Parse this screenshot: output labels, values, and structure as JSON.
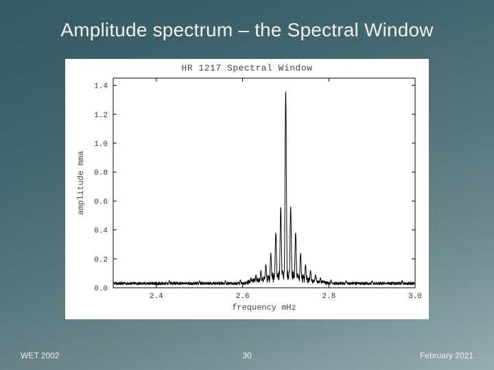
{
  "title": "Amplitude spectrum – the Spectral Window",
  "footer": {
    "left": "WET 2002",
    "page": "30",
    "right": "February 2021"
  },
  "chart": {
    "title": "HR 1217 Spectral Window",
    "type": "line",
    "xlabel": "frequency mHz",
    "ylabel": "amplitude mma",
    "xlim": [
      2.3,
      3.0
    ],
    "ylim": [
      0.0,
      1.45
    ],
    "xticks": [
      2.4,
      2.6,
      2.8,
      3.0
    ],
    "yticks": [
      0.0,
      0.2,
      0.4,
      0.6,
      0.8,
      1.0,
      1.2,
      1.4
    ],
    "line_color": "#000000",
    "line_width": 1.0,
    "background_color": "#ffffff",
    "axis_color": "#000000",
    "label_fontsize": 12,
    "tick_fontsize": 11,
    "title_fontsize": 13,
    "title_color": "#444444",
    "noise_base": 0.02,
    "noise_amp": 0.02,
    "sidelobe_band_start": 2.63,
    "sidelobe_band_end": 2.77,
    "sidelobe_envelope": 0.1,
    "peaks": [
      {
        "x": 2.7,
        "h": 1.36,
        "w": 0.0015
      },
      {
        "x": 2.6885,
        "h": 0.56,
        "w": 0.0015
      },
      {
        "x": 2.7115,
        "h": 0.56,
        "w": 0.0015
      },
      {
        "x": 2.677,
        "h": 0.38,
        "w": 0.0015
      },
      {
        "x": 2.723,
        "h": 0.38,
        "w": 0.0015
      },
      {
        "x": 2.6655,
        "h": 0.24,
        "w": 0.0015
      },
      {
        "x": 2.7345,
        "h": 0.24,
        "w": 0.0015
      },
      {
        "x": 2.654,
        "h": 0.16,
        "w": 0.0015
      },
      {
        "x": 2.746,
        "h": 0.16,
        "w": 0.0015
      },
      {
        "x": 2.6425,
        "h": 0.12,
        "w": 0.0015
      },
      {
        "x": 2.7575,
        "h": 0.12,
        "w": 0.0015
      },
      {
        "x": 2.631,
        "h": 0.09,
        "w": 0.0015
      },
      {
        "x": 2.769,
        "h": 0.09,
        "w": 0.0015
      },
      {
        "x": 2.6195,
        "h": 0.07,
        "w": 0.0015
      },
      {
        "x": 2.7805,
        "h": 0.07,
        "w": 0.0015
      },
      {
        "x": 2.595,
        "h": 0.055,
        "w": 0.0015
      },
      {
        "x": 2.805,
        "h": 0.055,
        "w": 0.0015
      },
      {
        "x": 2.56,
        "h": 0.05,
        "w": 0.0015
      },
      {
        "x": 2.84,
        "h": 0.05,
        "w": 0.0015
      },
      {
        "x": 2.5,
        "h": 0.048,
        "w": 0.0015
      },
      {
        "x": 2.9,
        "h": 0.048,
        "w": 0.0015
      },
      {
        "x": 2.43,
        "h": 0.05,
        "w": 0.0015
      },
      {
        "x": 2.97,
        "h": 0.05,
        "w": 0.0015
      }
    ]
  }
}
